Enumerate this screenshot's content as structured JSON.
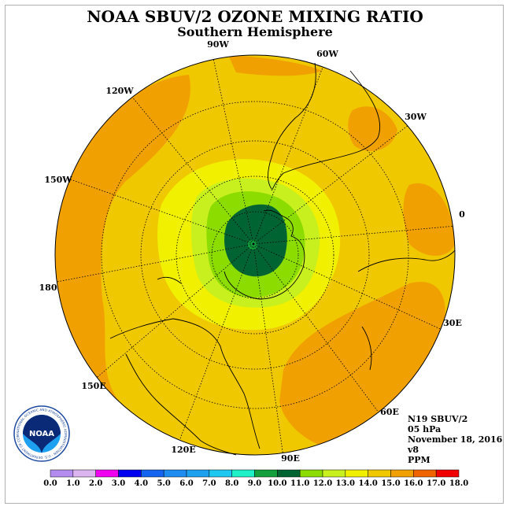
{
  "title": "NOAA SBUV/2 OZONE MIXING RATIO",
  "subtitle": "Southern Hemisphere",
  "longitude_labels": [
    {
      "text": "90W"
    },
    {
      "text": "60W"
    },
    {
      "text": "30W"
    },
    {
      "text": "0"
    },
    {
      "text": "30E"
    },
    {
      "text": "60E"
    },
    {
      "text": "90E"
    },
    {
      "text": "120E"
    },
    {
      "text": "150E"
    },
    {
      "text": "180"
    },
    {
      "text": "150W"
    },
    {
      "text": "120W"
    }
  ],
  "info": {
    "satellite": "N19 SBUV/2",
    "level": "05 hPa",
    "date": "November 18, 2016",
    "version": "v8",
    "units": "PPM"
  },
  "logo": {
    "text": "NOAA",
    "ring_text": "NATIONAL OCEANIC AND ATMOSPHERIC ADMINISTRATION · U.S. DEPARTMENT OF COMMERCE"
  },
  "colorbar": {
    "ticks": [
      "0.0",
      "1.0",
      "2.0",
      "3.0",
      "4.0",
      "5.0",
      "6.0",
      "7.0",
      "8.0",
      "9.0",
      "10.0",
      "11.0",
      "12.0",
      "13.0",
      "14.0",
      "15.0",
      "16.0",
      "17.0",
      "18.0"
    ],
    "colors": [
      "#b48cf0",
      "#dcb4f0",
      "#f000f0",
      "#0000f0",
      "#1464f0",
      "#1e8cf0",
      "#1ea0f0",
      "#1ec8f0",
      "#1ef0c8",
      "#14a03c",
      "#006432",
      "#8cdc00",
      "#c8f01e",
      "#f0f000",
      "#f0c800",
      "#f0a000",
      "#f06400",
      "#f00000",
      "#8c5a3c"
    ]
  },
  "colors": {
    "ocean_orange": "#f0a000",
    "background_gold": "#f0c800",
    "yellow": "#f0f000",
    "light_green": "#c8f01e",
    "green": "#8cdc00",
    "dark_green": "#006432",
    "medium_green": "#14a03c"
  }
}
